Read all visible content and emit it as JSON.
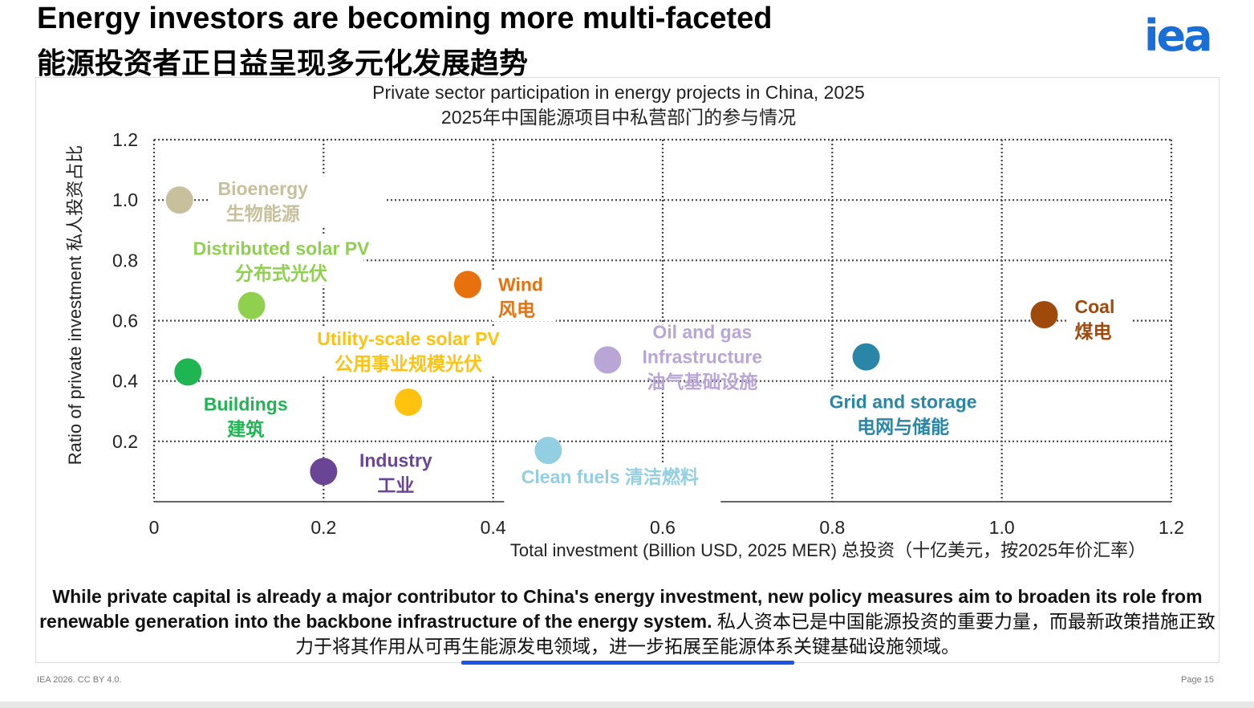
{
  "header": {
    "title_en": "Energy investors are becoming more multi-faceted",
    "title_zh": "能源投资者正日益呈现多元化发展趋势",
    "logo_text": "iea",
    "logo_color": "#1a6fd6"
  },
  "chart_data": {
    "type": "scatter",
    "title": "Private sector participation in energy projects in China, 2025",
    "subtitle": "2025年中国能源项目中私营部门的参与情况",
    "xlabel": "Total investment (Billion USD, 2025 MER) 总投资（十亿美元，按2025年价汇率）",
    "ylabel": "Ratio of private investment 私人投资占比",
    "xlim": [
      0,
      1.2
    ],
    "ylim": [
      0,
      1.2
    ],
    "x_ticks": [
      "0",
      "0.2",
      "0.4",
      "0.6",
      "0.8",
      "1.0",
      "1.2"
    ],
    "y_ticks": [
      "0.2",
      "0.4",
      "0.6",
      "0.8",
      "1.0",
      "1.2"
    ],
    "grid": true,
    "points": [
      {
        "name_en": "Bioenergy",
        "name_zh": "生物能源",
        "x": 0.03,
        "y": 1.0,
        "color": "#c8c09c"
      },
      {
        "name_en": "Distributed solar PV",
        "name_zh": "分布式光伏",
        "x": 0.115,
        "y": 0.65,
        "color": "#8fd14f"
      },
      {
        "name_en": "Buildings",
        "name_zh": "建筑",
        "x": 0.04,
        "y": 0.43,
        "color": "#1eb552"
      },
      {
        "name_en": "Industry",
        "name_zh": "工业",
        "x": 0.2,
        "y": 0.1,
        "color": "#6a4596"
      },
      {
        "name_en": "Utility-scale solar PV",
        "name_zh": "公用事业规模光伏",
        "x": 0.3,
        "y": 0.33,
        "color": "#ffc20e"
      },
      {
        "name_en": "Wind",
        "name_zh": "风电",
        "x": 0.37,
        "y": 0.72,
        "color": "#e8700d"
      },
      {
        "name_en": "Clean fuels",
        "name_zh": "清洁燃料",
        "x": 0.465,
        "y": 0.17,
        "color": "#93cfe3"
      },
      {
        "name_en": "Oil and gas Infrastructure",
        "name_zh": "油气基础设施",
        "x": 0.535,
        "y": 0.47,
        "color": "#b9a5d6"
      },
      {
        "name_en": "Grid and storage",
        "name_zh": "电网与储能",
        "x": 0.84,
        "y": 0.48,
        "color": "#2986a6"
      },
      {
        "name_en": "Coal",
        "name_zh": "煤电",
        "x": 1.05,
        "y": 0.62,
        "color": "#a0490c"
      }
    ]
  },
  "caption": {
    "en_bold": "While private capital is already a major contributor to China's energy investment, new policy measures aim to broaden its role from renewable generation into the backbone infrastructure of the energy system.",
    "zh": " 私人资本已是中国能源投资的重要力量，而最新政策措施正致力于将其作用从可再生能源发电领域，进一步拓展至能源体系关键基础设施领域。"
  },
  "footer": {
    "left": "IEA 2026. CC BY 4.0.",
    "right": "Page 15"
  }
}
